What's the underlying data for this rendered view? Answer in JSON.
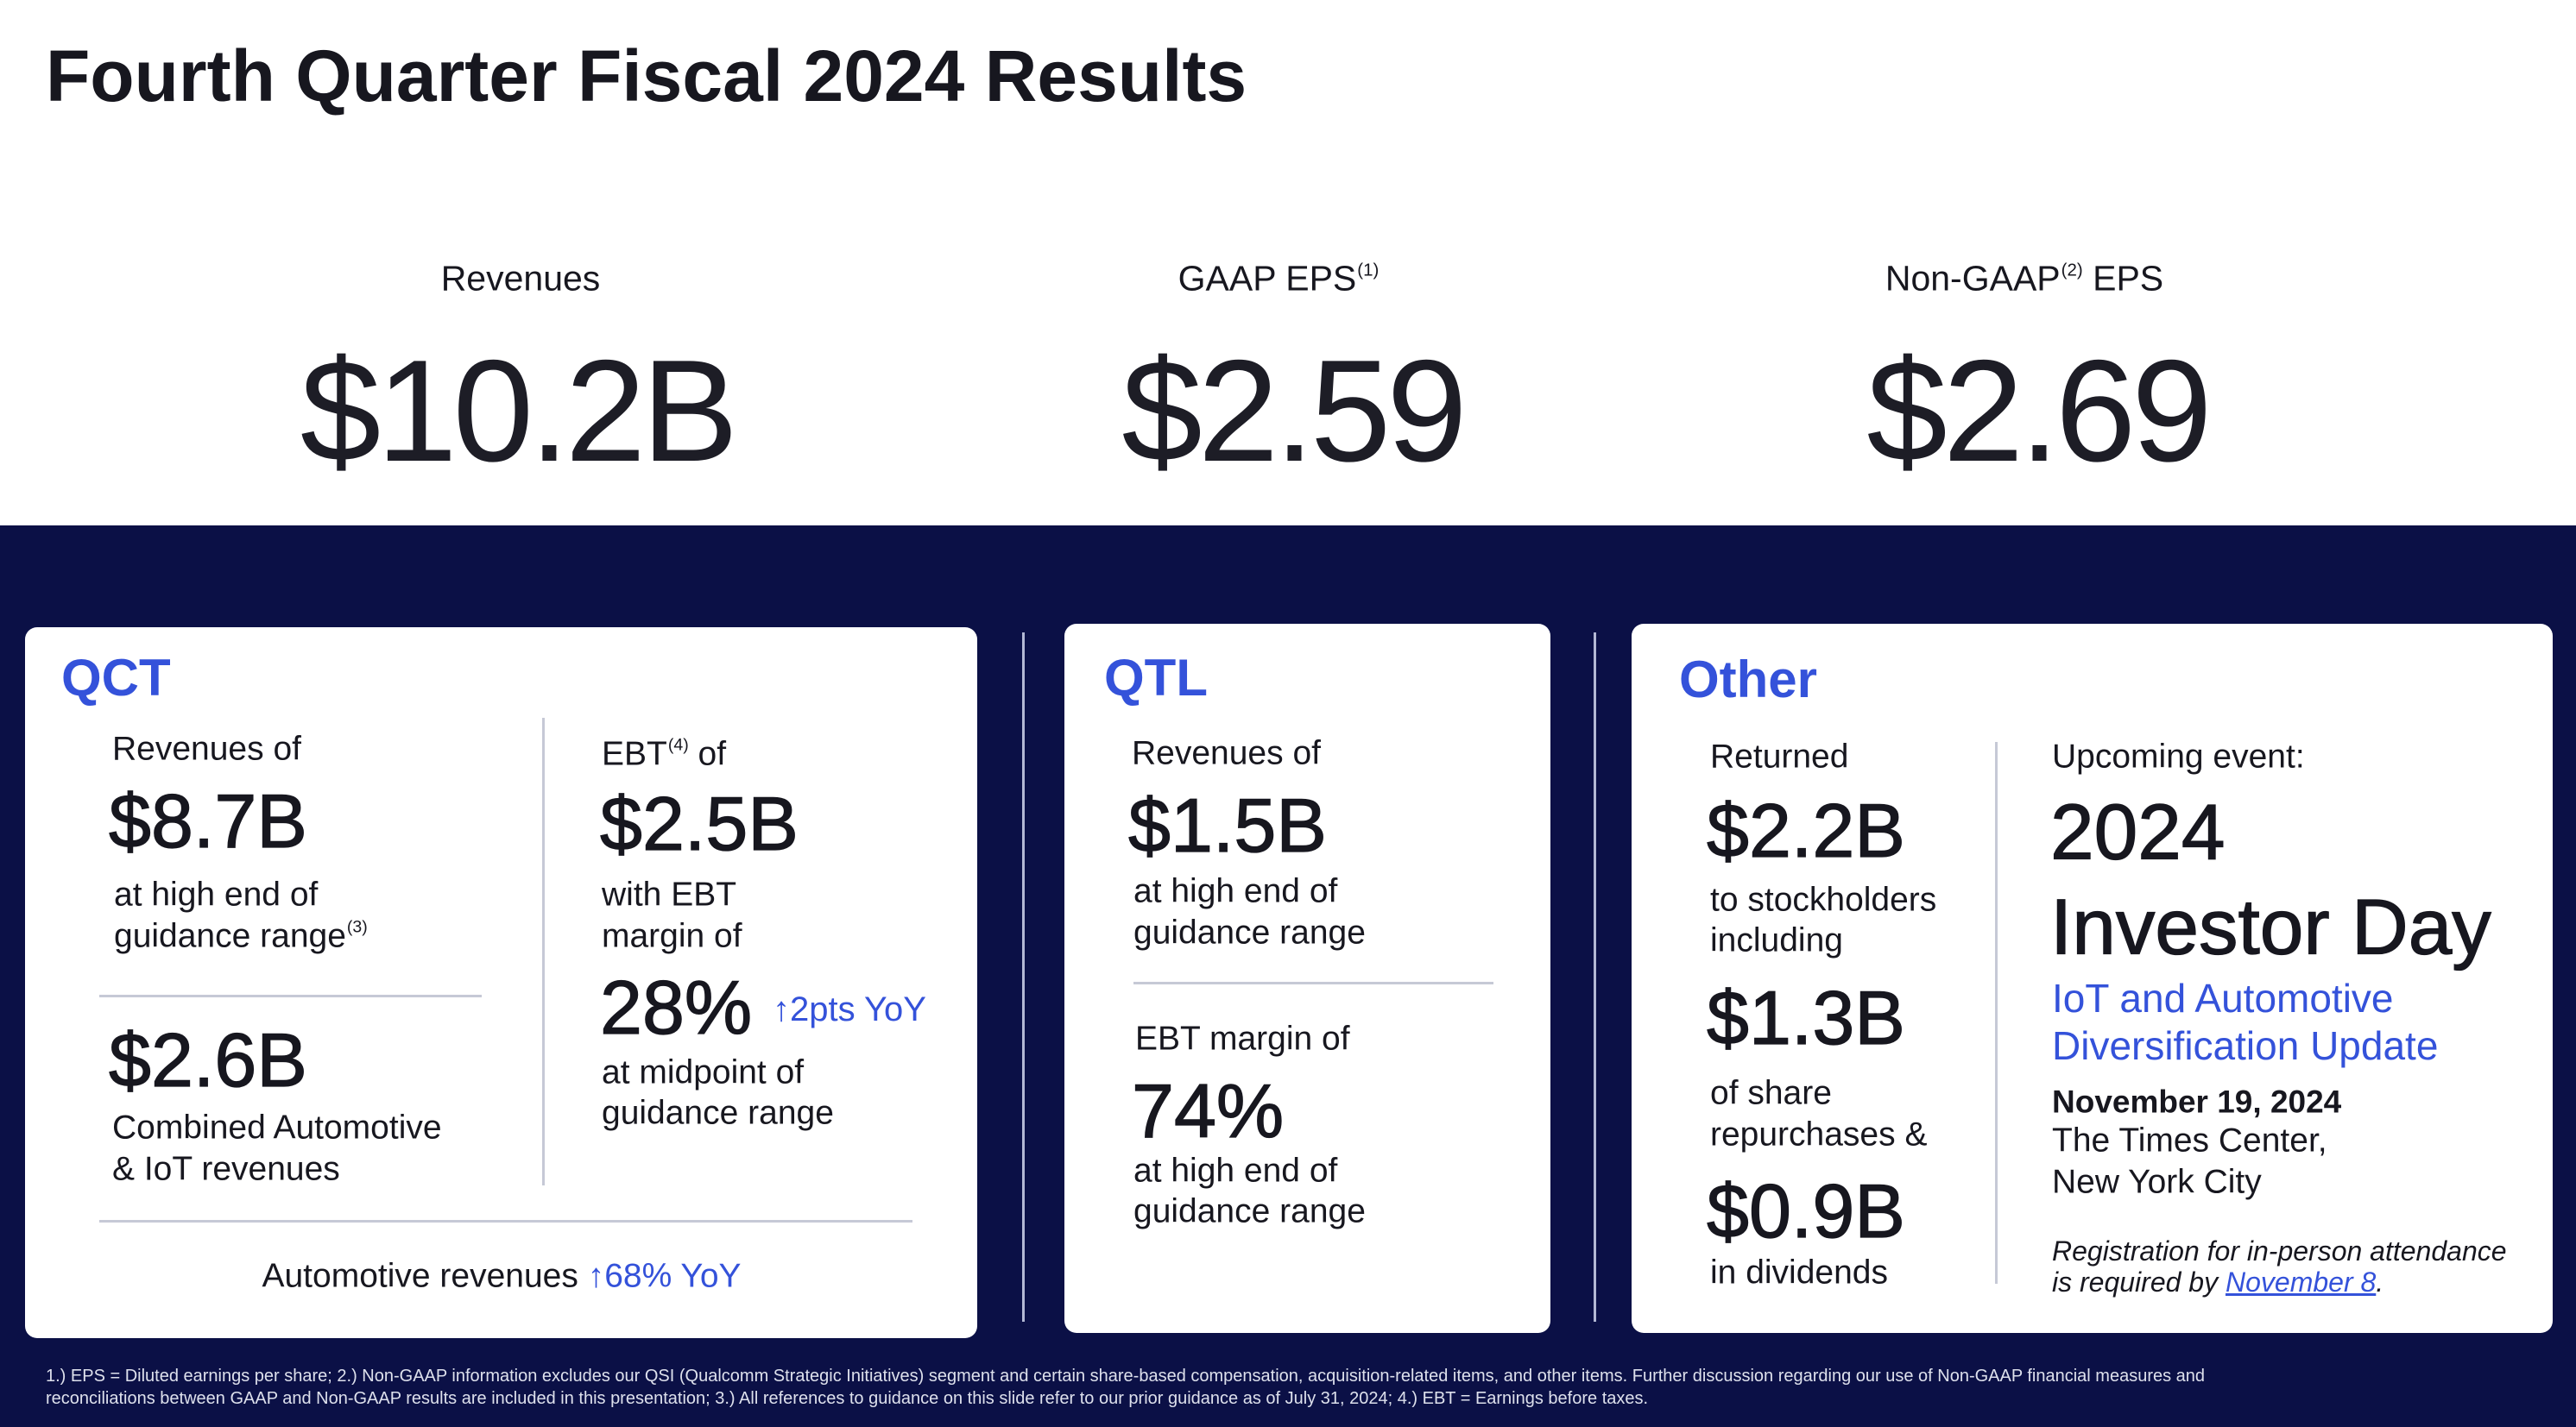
{
  "title": "Fourth Quarter Fiscal 2024 Results",
  "headline": {
    "revenues": {
      "label": "Revenues",
      "value": "$10.2B"
    },
    "gaap_eps": {
      "label": "GAAP EPS",
      "footnote": "(1)",
      "value": "$2.59"
    },
    "non_gaap_eps": {
      "label_prefix": "Non-GAAP",
      "footnote": "(2)",
      "label_suffix": "EPS",
      "value": "$2.69"
    }
  },
  "qct": {
    "title": "QCT",
    "revenues": {
      "label": "Revenues of",
      "value": "$8.7B",
      "line1": "at high end of",
      "line2": "guidance range",
      "footnote": "(3)"
    },
    "auto_iot": {
      "value": "$2.6B",
      "line1": "Combined Automotive",
      "line2": "& IoT revenues"
    },
    "ebt": {
      "label": "EBT",
      "footnote": "(4)",
      "label_suffix": "of",
      "value": "$2.5B",
      "line1": "with EBT",
      "line2": "margin of",
      "margin": "28%",
      "change_arrow": "↑",
      "change": "2pts YoY",
      "line3": "at midpoint of",
      "line4": "guidance range"
    },
    "automotive": {
      "label": "Automotive revenues",
      "change_arrow": "↑",
      "change": "68% YoY"
    }
  },
  "qtl": {
    "title": "QTL",
    "revenues": {
      "label": "Revenues of",
      "value": "$1.5B",
      "line1": "at high end of",
      "line2": "guidance range"
    },
    "ebt_margin": {
      "label": "EBT margin of",
      "value": "74%",
      "line1": "at high end of",
      "line2": "guidance range"
    }
  },
  "other": {
    "title": "Other",
    "capital_return": {
      "label": "Returned",
      "total": "$2.2B",
      "line1": "to stockholders",
      "line2": "including",
      "repurchases": "$1.3B",
      "line3": "of share",
      "line4": "repurchases &",
      "dividends": "$0.9B",
      "line5": "in dividends"
    },
    "event": {
      "label": "Upcoming event:",
      "year": "2024",
      "name": "Investor Day",
      "subtitle_line1": "IoT and Automotive",
      "subtitle_line2": "Diversification Update",
      "date": "November 19, 2024",
      "venue_line1": "The Times Center,",
      "venue_line2": "New York City",
      "note_line1": "Registration for in-person attendance",
      "note_line2": "is required by",
      "deadline_link": "November 8",
      "note_end": "."
    }
  },
  "footnotes": {
    "line1": "1.) EPS = Diluted earnings per share; 2.) Non-GAAP information excludes our QSI (Qualcomm Strategic Initiatives) segment and certain share-based compensation, acquisition-related items, and other items. Further discussion regarding our use of Non-GAAP financial measures and",
    "line2": "reconciliations between GAAP and Non-GAAP results are included in this presentation; 3.) All references to guidance on this slide refer to our prior guidance as of July 31, 2024; 4.) EBT = Earnings before taxes."
  },
  "icons": {
    "change_arrow": "arrow-up-icon"
  },
  "colors": {
    "navy_band": "#0b1046",
    "accent_blue": "#3452da",
    "text": "#17171f",
    "card_background": "#ffffff",
    "divider": "#c6c9d6",
    "footnote_text": "#dde0ec"
  }
}
